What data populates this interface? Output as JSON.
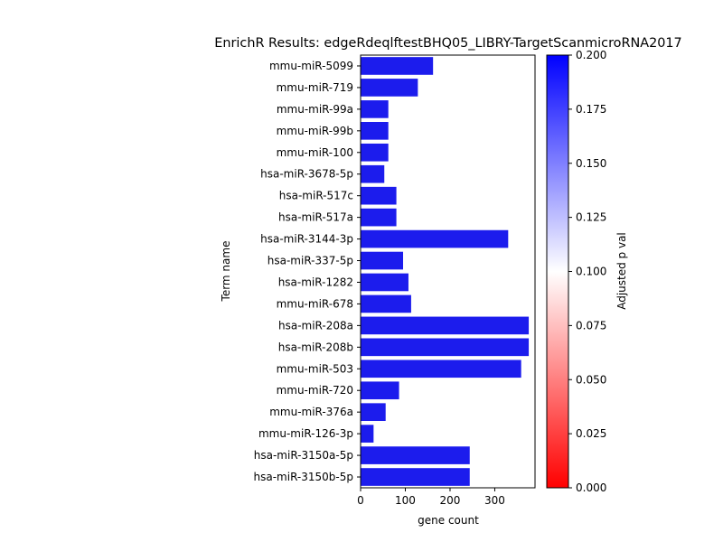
{
  "chart_data": {
    "type": "bar",
    "orientation": "horizontal",
    "title": "EnrichR Results: edgeRdeqlftestBHQ05_LIBRY-TargetScanmicroRNA2017",
    "xlabel": "gene count",
    "ylabel": "Term name",
    "xlim": [
      0,
      390
    ],
    "x_ticks": [
      "0",
      "100",
      "200",
      "300"
    ],
    "x_tick_values": [
      0,
      100,
      200,
      300
    ],
    "categories": [
      "mmu-miR-5099",
      "mmu-miR-719",
      "mmu-miR-99a",
      "mmu-miR-99b",
      "mmu-miR-100",
      "hsa-miR-3678-5p",
      "hsa-miR-517c",
      "hsa-miR-517a",
      "hsa-miR-3144-3p",
      "hsa-miR-337-5p",
      "hsa-miR-1282",
      "mmu-miR-678",
      "hsa-miR-208a",
      "hsa-miR-208b",
      "mmu-miR-503",
      "mmu-miR-720",
      "mmu-miR-376a",
      "mmu-miR-126-3p",
      "hsa-miR-3150a-5p",
      "hsa-miR-3150b-5p"
    ],
    "values": [
      162,
      128,
      62,
      62,
      62,
      53,
      80,
      80,
      330,
      95,
      107,
      113,
      376,
      376,
      359,
      86,
      56,
      29,
      244,
      244
    ],
    "bar_color": "#1c1ced",
    "colorbar": {
      "label": "Adjusted p val",
      "range": [
        0.0,
        0.2
      ],
      "ticks": [
        "0.000",
        "0.025",
        "0.050",
        "0.075",
        "0.100",
        "0.125",
        "0.150",
        "0.175",
        "0.200"
      ],
      "tick_values": [
        0.0,
        0.025,
        0.05,
        0.075,
        0.1,
        0.125,
        0.15,
        0.175,
        0.2
      ],
      "colors": [
        "#ff0000",
        "#ffffff",
        "#0000ff"
      ]
    },
    "grid": false,
    "legend": "none"
  }
}
